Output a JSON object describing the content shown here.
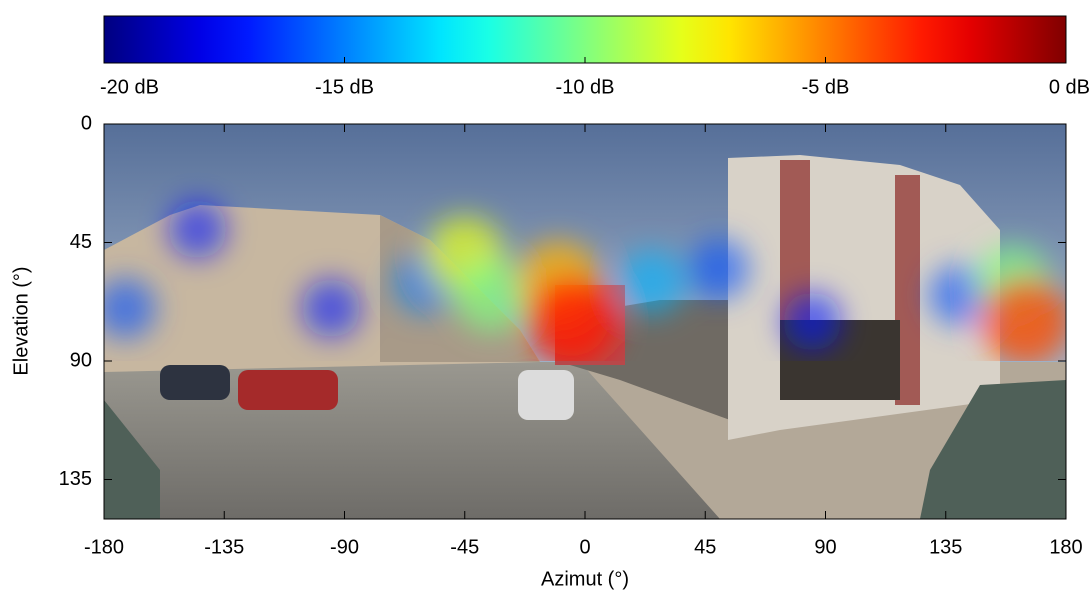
{
  "chart_data": {
    "type": "heatmap",
    "xlabel": "Azimut (°)",
    "ylabel": "Elevation (°)",
    "xlim": [
      -180,
      180
    ],
    "xticks": [
      -180,
      -135,
      -90,
      -45,
      0,
      45,
      90,
      135,
      180
    ],
    "ylim": [
      0,
      150
    ],
    "yticks": [
      0,
      45,
      90,
      135
    ],
    "y_inverted": true,
    "colormap": "jet",
    "clim": [
      -20,
      0
    ],
    "cticks": [
      {
        "value": -20,
        "label": "-20 dB"
      },
      {
        "value": -15,
        "label": "-15 dB"
      },
      {
        "value": -10,
        "label": "-10 dB"
      },
      {
        "value": -5,
        "label": "-5 dB"
      },
      {
        "value": 0,
        "label": "0 dB"
      }
    ],
    "map_max_elevation": 90,
    "x": [
      -172,
      -145,
      -95,
      -60,
      -45,
      -35,
      -10,
      -5,
      25,
      50,
      85,
      140,
      160,
      165
    ],
    "y": [
      70,
      40,
      70,
      60,
      50,
      65,
      60,
      75,
      60,
      55,
      75,
      65,
      60,
      75
    ],
    "values": [
      -16,
      -17,
      -17,
      -15,
      -8,
      -10,
      -6,
      -3,
      -14,
      -16,
      -17,
      -16,
      -10,
      -4
    ]
  }
}
